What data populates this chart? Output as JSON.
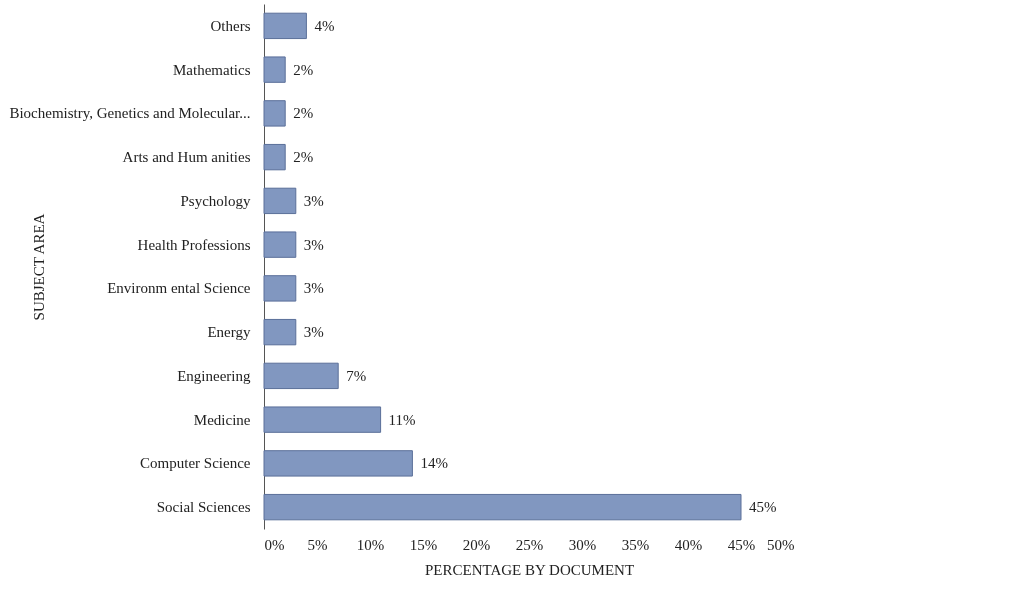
{
  "chart_data": {
    "type": "bar",
    "orientation": "horizontal",
    "xlabel": "PERCENTAGE  BY  DOCUMENT",
    "ylabel": "SUBJECT  AREA",
    "categories": [
      "Others",
      "Mathematics",
      "Biochemistry, Genetics and Molecular...",
      "Arts and Hum anities",
      "Psychology",
      "Health Professions",
      "Environm ental Science",
      "Energy",
      "Engineering",
      "Medicine",
      "Computer Science",
      "Social Sciences"
    ],
    "values": [
      4,
      2,
      2,
      2,
      3,
      3,
      3,
      3,
      7,
      11,
      14,
      45
    ],
    "value_labels": [
      "4%",
      "2%",
      "2%",
      "2%",
      "3%",
      "3%",
      "3%",
      "3%",
      "7%",
      "11%",
      "14%",
      "45%"
    ],
    "color": "#8197c0",
    "xlim": [
      0,
      50
    ],
    "xticks": [
      {
        "value": 0,
        "label": "0%"
      },
      {
        "value": 5,
        "label": "5%"
      },
      {
        "value": 10,
        "label": "10%"
      },
      {
        "value": 15,
        "label": "15%"
      },
      {
        "value": 20,
        "label": "20%"
      },
      {
        "value": 25,
        "label": "25%"
      },
      {
        "value": 30,
        "label": "30%"
      },
      {
        "value": 35,
        "label": "35%"
      },
      {
        "value": 40,
        "label": "40%"
      },
      {
        "value": 45,
        "label": "45%"
      },
      {
        "value": 50,
        "label": "50%"
      }
    ],
    "grid": false
  }
}
